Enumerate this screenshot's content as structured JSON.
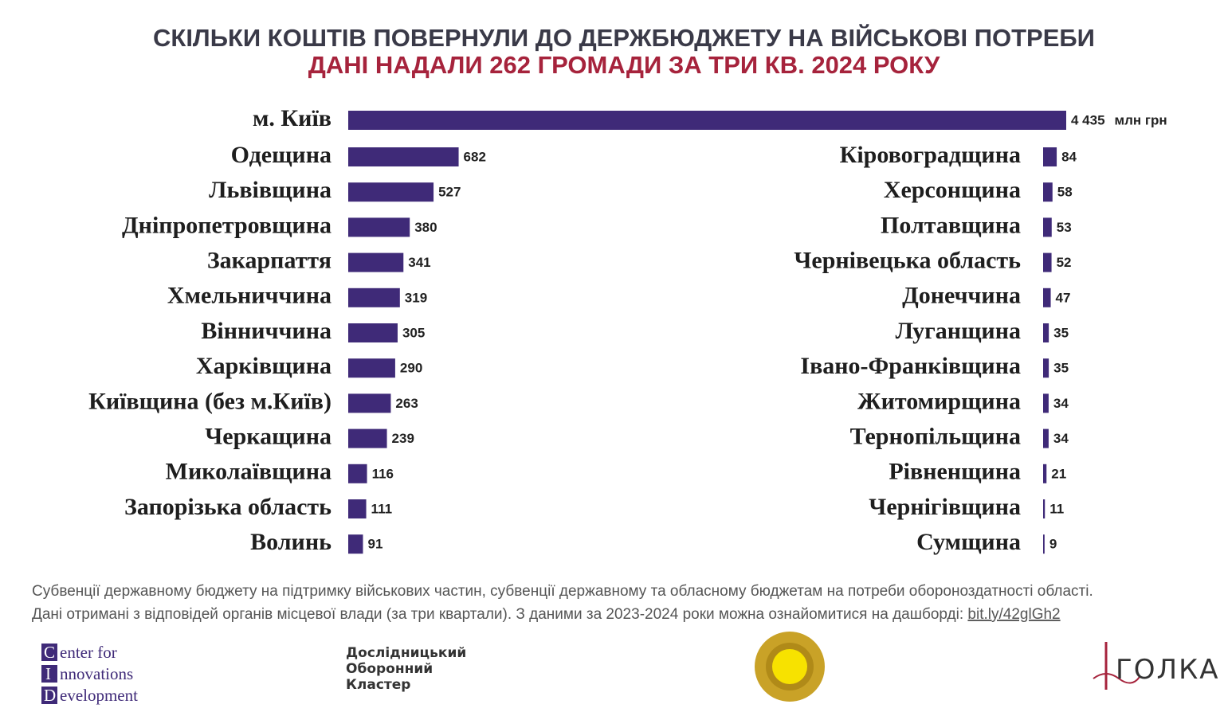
{
  "chart_data": {
    "type": "bar",
    "orientation": "horizontal",
    "title": "СКІЛЬКИ КОШТІВ ПОВЕРНУЛИ ДО ДЕРЖБЮДЖЕТУ НА ВІЙСЬКОВІ ПОТРЕБИ",
    "subtitle": "ДАНІ НАДАЛИ 262 ГРОМАДИ ЗА ТРИ КВ. 2024 РОКУ",
    "categories": [
      "м. Київ",
      "Одещина",
      "Львівщина",
      "Дніпропетровщина",
      "Закарпаття",
      "Хмельниччина",
      "Вінниччина",
      "Харківщина",
      "Київщина (без м.Київ)",
      "Черкащина",
      "Миколаївщина",
      "Запорізька область",
      "Волинь",
      "Кіровоградщина",
      "Херсонщина",
      "Полтавщина",
      "Чернівецька область",
      "Донеччина",
      "Луганщина",
      "Івано-Франківщина",
      "Житомирщина",
      "Тернопільщина",
      "Рівненщина",
      "Чернігівщина",
      "Сумщина"
    ],
    "values": [
      4435,
      682,
      527,
      380,
      341,
      319,
      305,
      290,
      263,
      239,
      116,
      111,
      91,
      84,
      58,
      53,
      52,
      47,
      35,
      35,
      34,
      34,
      21,
      11,
      9
    ],
    "value_labels": [
      "4 435",
      "682",
      "527",
      "380",
      "341",
      "319",
      "305",
      "290",
      "263",
      "239",
      "116",
      "111",
      "91",
      "84",
      "58",
      "53",
      "52",
      "47",
      "35",
      "35",
      "34",
      "34",
      "21",
      "11",
      "9"
    ],
    "unit": "млн грн",
    "color": "#3f2a78"
  },
  "footer": {
    "notes": [
      "Субвенції державному бюджету на підтримку військових частин, субвенції державному та обласному бюджетам на потреби обороноздатності області.",
      "Дані отримані з відповідей органів місцевої влади (за три квартали). З даними за 2023-2024 роки можна ознайомитися на дашборді: "
    ],
    "link": "bit.ly/42glGh2",
    "logos": {
      "cid": [
        "C",
        "enter for",
        "I",
        "nnovations",
        "D",
        "evelopment"
      ],
      "cluster": [
        "Дослідницький",
        "Оборонний",
        "Кластер"
      ],
      "golka": "ГОЛКА"
    }
  }
}
